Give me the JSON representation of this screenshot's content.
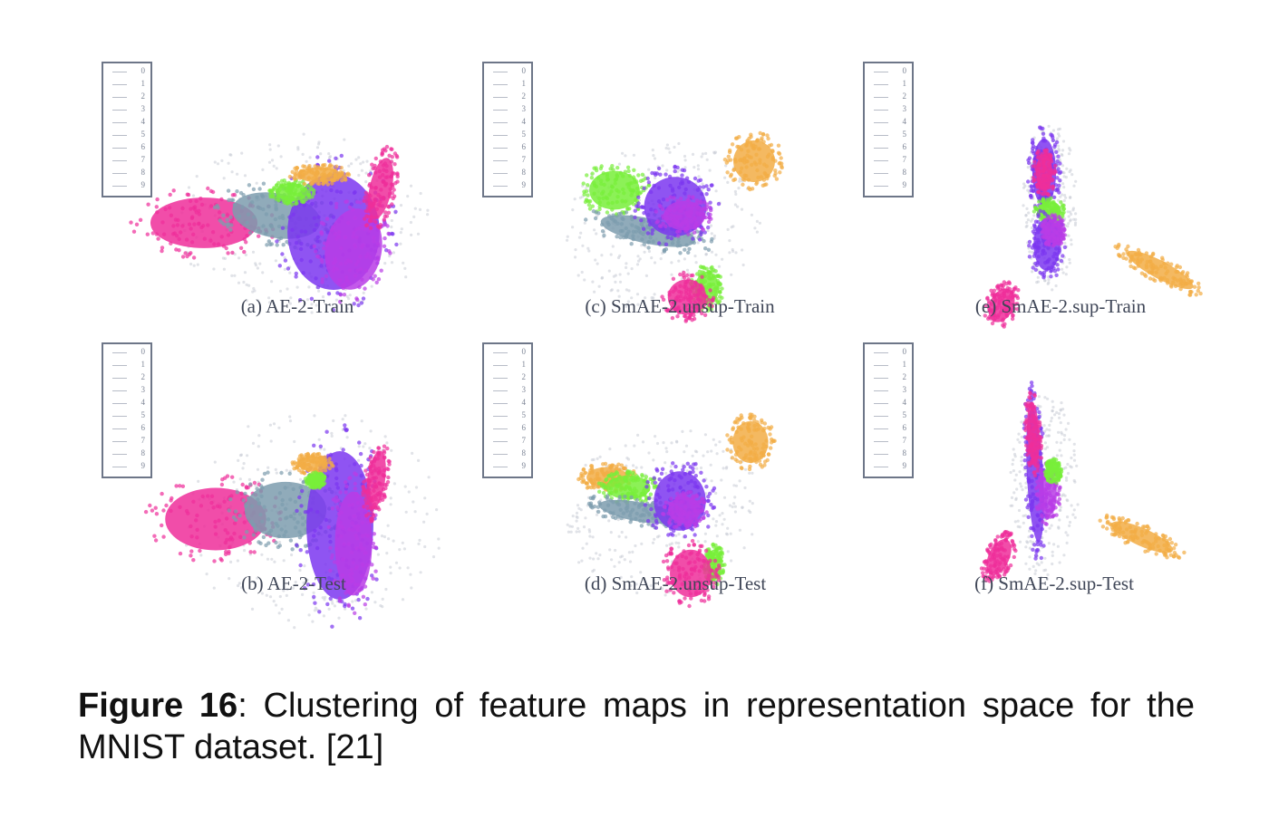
{
  "colors": {
    "pink": "#ee2e9a",
    "purple": "#7b36f0",
    "orange": "#f2ad45",
    "green": "#78ee3a",
    "steel": "#7d9cae",
    "gray": "#c8ccd6",
    "magenta": "#b93ce6"
  },
  "panels": [
    {
      "caption": "(a) AE-2-Train",
      "legend": [
        "0",
        "1",
        "2",
        "3",
        "4",
        "5",
        "6",
        "7",
        "8",
        "9"
      ],
      "chart_data": {
        "type": "scatter",
        "title": "(a) AE-2-Train",
        "clusters": [
          {
            "color": "gray",
            "cx": 245,
            "cy": 188,
            "rx": 140,
            "ry": 100,
            "rot": 0
          },
          {
            "color": "pink",
            "cx": 135,
            "cy": 186,
            "rx": 72,
            "ry": 34,
            "rot": 0
          },
          {
            "color": "steel",
            "cx": 215,
            "cy": 178,
            "rx": 60,
            "ry": 30,
            "rot": 10
          },
          {
            "color": "purple",
            "cx": 278,
            "cy": 196,
            "rx": 62,
            "ry": 78,
            "rot": 0
          },
          {
            "color": "magenta",
            "cx": 300,
            "cy": 215,
            "rx": 38,
            "ry": 55,
            "rot": 10
          },
          {
            "color": "green",
            "cx": 232,
            "cy": 152,
            "rx": 22,
            "ry": 12,
            "rot": 0
          },
          {
            "color": "orange",
            "cx": 262,
            "cy": 133,
            "rx": 30,
            "ry": 10,
            "rot": 0
          },
          {
            "color": "pink",
            "cx": 330,
            "cy": 148,
            "rx": 15,
            "ry": 42,
            "rot": 12
          }
        ]
      }
    },
    {
      "caption": "(c) SmAE-2.unsup-Train",
      "legend": [
        "0",
        "1",
        "2",
        "3",
        "4",
        "5",
        "6",
        "7",
        "8",
        "9"
      ],
      "chart_data": {
        "type": "scatter",
        "title": "(c) SmAE-2.unsup-Train",
        "clusters": [
          {
            "color": "gray",
            "cx": 220,
            "cy": 190,
            "rx": 110,
            "ry": 92,
            "rot": -15
          },
          {
            "color": "orange",
            "cx": 322,
            "cy": 118,
            "rx": 28,
            "ry": 28,
            "rot": 0
          },
          {
            "color": "green",
            "cx": 168,
            "cy": 150,
            "rx": 34,
            "ry": 26,
            "rot": 0
          },
          {
            "color": "steel",
            "cx": 205,
            "cy": 195,
            "rx": 65,
            "ry": 17,
            "rot": 12
          },
          {
            "color": "purple",
            "cx": 235,
            "cy": 168,
            "rx": 42,
            "ry": 40,
            "rot": 0
          },
          {
            "color": "magenta",
            "cx": 245,
            "cy": 178,
            "rx": 28,
            "ry": 20,
            "rot": 0
          },
          {
            "color": "green",
            "cx": 270,
            "cy": 258,
            "rx": 16,
            "ry": 22,
            "rot": 0
          },
          {
            "color": "pink",
            "cx": 248,
            "cy": 268,
            "rx": 26,
            "ry": 24,
            "rot": 0
          }
        ]
      }
    },
    {
      "caption": "(e) SmAE-2.sup-Train",
      "legend": [
        "0",
        "1",
        "2",
        "3",
        "4",
        "5",
        "6",
        "7",
        "8",
        "9"
      ],
      "chart_data": {
        "type": "scatter",
        "title": "(e) SmAE-2.sup-Train",
        "clusters": [
          {
            "color": "gray",
            "cx": 228,
            "cy": 168,
            "rx": 30,
            "ry": 95,
            "rot": 0
          },
          {
            "color": "purple",
            "cx": 222,
            "cy": 130,
            "rx": 16,
            "ry": 45,
            "rot": 0
          },
          {
            "color": "pink",
            "cx": 222,
            "cy": 130,
            "rx": 11,
            "ry": 24,
            "rot": 0
          },
          {
            "color": "green",
            "cx": 228,
            "cy": 172,
            "rx": 15,
            "ry": 12,
            "rot": 0
          },
          {
            "color": "purple",
            "cx": 225,
            "cy": 210,
            "rx": 18,
            "ry": 35,
            "rot": 0
          },
          {
            "color": "magenta",
            "cx": 232,
            "cy": 195,
            "rx": 12,
            "ry": 16,
            "rot": 0
          },
          {
            "color": "orange",
            "cx": 350,
            "cy": 238,
            "rx": 50,
            "ry": 12,
            "rot": 28
          },
          {
            "color": "pink",
            "cx": 175,
            "cy": 277,
            "rx": 16,
            "ry": 24,
            "rot": 25
          }
        ]
      }
    },
    {
      "caption": "(b) AE-2-Test",
      "legend": [
        "0",
        "1",
        "2",
        "3",
        "4",
        "5",
        "6",
        "7",
        "8",
        "9"
      ],
      "chart_data": {
        "type": "scatter",
        "title": "(b) AE-2-Test",
        "clusters": [
          {
            "color": "gray",
            "cx": 255,
            "cy": 205,
            "rx": 145,
            "ry": 120,
            "rot": 0
          },
          {
            "color": "pink",
            "cx": 148,
            "cy": 203,
            "rx": 68,
            "ry": 42,
            "rot": 0
          },
          {
            "color": "steel",
            "cx": 225,
            "cy": 193,
            "rx": 55,
            "ry": 38,
            "rot": 0
          },
          {
            "color": "purple",
            "cx": 285,
            "cy": 210,
            "rx": 45,
            "ry": 100,
            "rot": 0
          },
          {
            "color": "magenta",
            "cx": 300,
            "cy": 230,
            "rx": 25,
            "ry": 70,
            "rot": 0
          },
          {
            "color": "orange",
            "cx": 255,
            "cy": 142,
            "rx": 20,
            "ry": 10,
            "rot": 0
          },
          {
            "color": "pink",
            "cx": 325,
            "cy": 160,
            "rx": 12,
            "ry": 40,
            "rot": 8
          },
          {
            "color": "green",
            "cx": 258,
            "cy": 160,
            "rx": 10,
            "ry": 8,
            "rot": 0
          }
        ]
      }
    },
    {
      "caption": "(d) SmAE-2.unsup-Test",
      "legend": [
        "0",
        "1",
        "2",
        "3",
        "4",
        "5",
        "6",
        "7",
        "8",
        "9"
      ],
      "chart_data": {
        "type": "scatter",
        "title": "(d) SmAE-2.unsup-Test",
        "clusters": [
          {
            "color": "gray",
            "cx": 220,
            "cy": 195,
            "rx": 110,
            "ry": 92,
            "rot": -15
          },
          {
            "color": "orange",
            "cx": 318,
            "cy": 118,
            "rx": 24,
            "ry": 28,
            "rot": 0
          },
          {
            "color": "orange",
            "cx": 160,
            "cy": 157,
            "rx": 28,
            "ry": 14,
            "rot": 0
          },
          {
            "color": "green",
            "cx": 183,
            "cy": 168,
            "rx": 30,
            "ry": 16,
            "rot": 0
          },
          {
            "color": "steel",
            "cx": 195,
            "cy": 195,
            "rx": 55,
            "ry": 13,
            "rot": 10
          },
          {
            "color": "purple",
            "cx": 240,
            "cy": 183,
            "rx": 35,
            "ry": 40,
            "rot": 0
          },
          {
            "color": "magenta",
            "cx": 245,
            "cy": 193,
            "rx": 22,
            "ry": 18,
            "rot": 0
          },
          {
            "color": "green",
            "cx": 278,
            "cy": 253,
            "rx": 10,
            "ry": 20,
            "rot": 0
          },
          {
            "color": "pink",
            "cx": 252,
            "cy": 263,
            "rx": 28,
            "ry": 32,
            "rot": 0
          }
        ]
      }
    },
    {
      "caption": "(f) SmAE-2.sup-Test",
      "legend": [
        "0",
        "1",
        "2",
        "3",
        "4",
        "5",
        "6",
        "7",
        "8",
        "9"
      ],
      "chart_data": {
        "type": "scatter",
        "title": "(f) SmAE-2.sup-Test",
        "clusters": [
          {
            "color": "gray",
            "cx": 222,
            "cy": 165,
            "rx": 38,
            "ry": 105,
            "rot": 0
          },
          {
            "color": "purple",
            "cx": 212,
            "cy": 155,
            "rx": 11,
            "ry": 90,
            "rot": -3
          },
          {
            "color": "pink",
            "cx": 210,
            "cy": 108,
            "rx": 8,
            "ry": 42,
            "rot": -3
          },
          {
            "color": "magenta",
            "cx": 226,
            "cy": 175,
            "rx": 12,
            "ry": 30,
            "rot": 0
          },
          {
            "color": "green",
            "cx": 232,
            "cy": 150,
            "rx": 8,
            "ry": 12,
            "rot": 0
          },
          {
            "color": "orange",
            "cx": 330,
            "cy": 223,
            "rx": 45,
            "ry": 12,
            "rot": 24
          },
          {
            "color": "pink",
            "cx": 172,
            "cy": 245,
            "rx": 14,
            "ry": 26,
            "rot": 25
          }
        ]
      }
    }
  ],
  "figure_caption": {
    "label": "Figure 16",
    "text": ": Clustering of feature maps in representation space for the MNIST dataset. [21]"
  }
}
